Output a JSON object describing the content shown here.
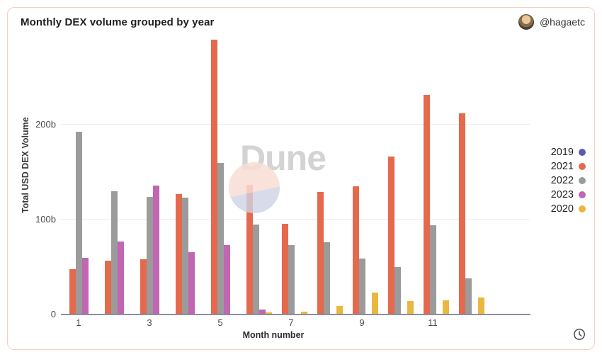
{
  "header": {
    "title": "Monthly DEX volume grouped by year",
    "author_handle": "@hagaetc"
  },
  "watermark": {
    "text": "Dune"
  },
  "chart_data": {
    "type": "bar",
    "title": "Monthly DEX volume grouped by year",
    "xlabel": "Month number",
    "ylabel": "Total USD DEX Volume",
    "unit": "billions USD",
    "x": [
      1,
      2,
      3,
      4,
      5,
      6,
      7,
      8,
      9,
      10,
      11,
      12
    ],
    "x_tick_labels": [
      "1",
      "3",
      "5",
      "7",
      "9",
      "11"
    ],
    "y_ticks": [
      {
        "value": 0,
        "label": "0"
      },
      {
        "value": 100,
        "label": "100b"
      },
      {
        "value": 200,
        "label": "200b"
      }
    ],
    "ylim": [
      0,
      290
    ],
    "grid": "horizontal",
    "legend_position": "right",
    "series": [
      {
        "name": "2019",
        "color": "#5b5ea6",
        "values": [
          1,
          1,
          1,
          1,
          1,
          1,
          1,
          1,
          1,
          1,
          1,
          1
        ]
      },
      {
        "name": "2021",
        "color": "#e5694c",
        "values": [
          48,
          57,
          58,
          127,
          290,
          137,
          96,
          129,
          135,
          167,
          232,
          212
        ]
      },
      {
        "name": "2022",
        "color": "#9b9b9b",
        "values": [
          193,
          130,
          124,
          123,
          160,
          95,
          73,
          76,
          59,
          50,
          94,
          38
        ]
      },
      {
        "name": "2023",
        "color": "#c166b3",
        "values": [
          60,
          77,
          136,
          66,
          73,
          5,
          0,
          0,
          0,
          0,
          0,
          0
        ]
      },
      {
        "name": "2020",
        "color": "#e9b840",
        "values": [
          1,
          1,
          1,
          1,
          1,
          2,
          3,
          9,
          23,
          14,
          15,
          18
        ]
      }
    ]
  }
}
